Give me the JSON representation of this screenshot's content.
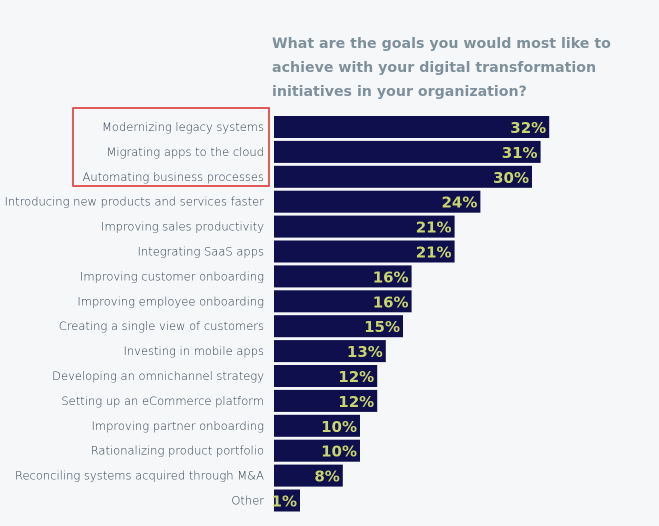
{
  "title": "What are the goals you would most like to\nachieve with your digital transformation\ninitiatives in your organization?",
  "colors": {
    "bar": "#0f0f4d",
    "value_text": "#c8d46e",
    "highlight": "#e35a5a"
  },
  "chart_data": {
    "type": "bar",
    "orientation": "horizontal",
    "title": "What are the goals you would most like to achieve with your digital transformation initiatives in your organization?",
    "unit": "%",
    "categories": [
      "Modernizing legacy systems",
      "Migrating apps to the cloud",
      "Automating business processes",
      "Introducing new products and services faster",
      "Improving sales productivity",
      "Integrating SaaS apps",
      "Improving customer onboarding",
      "Improving employee onboarding",
      "Creating a single view of customers",
      "Investing in mobile apps",
      "Developing an omnichannel strategy",
      "Setting up an eCommerce platform",
      "Improving partner onboarding",
      "Rationalizing product portfolio",
      "Reconciling systems acquired through M&A",
      "Other"
    ],
    "values": [
      32,
      31,
      30,
      24,
      21,
      21,
      16,
      16,
      15,
      13,
      12,
      12,
      10,
      10,
      8,
      1
    ],
    "value_labels": [
      "32%",
      "31%",
      "30%",
      "24%",
      "21%",
      "21%",
      "16%",
      "16%",
      "15%",
      "13%",
      "12%",
      "12%",
      "10%",
      "10%",
      "8%",
      "1%"
    ],
    "highlighted_categories": [
      "Modernizing legacy systems",
      "Migrating apps to the cloud",
      "Automating business processes"
    ]
  }
}
